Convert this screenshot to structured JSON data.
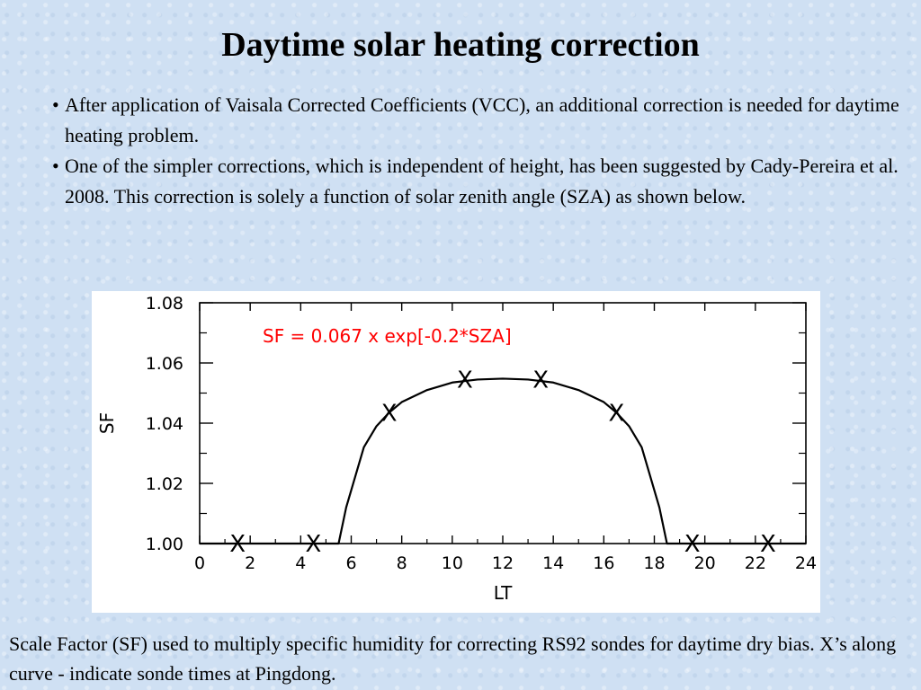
{
  "slide": {
    "title": "Daytime solar heating correction",
    "bullets": [
      "After application of  Vaisala Corrected Coefficients (VCC), an additional correction is needed for daytime heating problem.",
      "One of the simpler corrections, which is independent of height, has been suggested by Cady-Pereira et al. 2008. This correction is solely a function of solar zenith angle (SZA) as shown below."
    ],
    "bullet_symbol": "•",
    "caption": "Scale Factor (SF) used to multiply specific humidity for correcting RS92 sondes for daytime dry bias. X’s along curve - indicate sonde times at Pingdong."
  },
  "chart_data": {
    "type": "line",
    "xlabel": "LT",
    "ylabel": "SF",
    "xlim": [
      0,
      24
    ],
    "ylim": [
      1.0,
      1.08
    ],
    "xticks": [
      "0",
      "2",
      "4",
      "6",
      "8",
      "10",
      "12",
      "14",
      "16",
      "18",
      "20",
      "22",
      "24"
    ],
    "yticks": [
      "1.00",
      "1.02",
      "1.04",
      "1.06",
      "1.08"
    ],
    "annotation": "SF = 0.067 x exp[-0.2*SZA]",
    "annotation_color": "#ff0000",
    "grid": false,
    "series": [
      {
        "x": [
          0,
          5.5,
          5.8,
          6.5,
          7.0,
          7.5,
          8.0,
          9.0,
          10.0,
          11.0,
          12.0,
          13.0,
          14.0,
          15.0,
          16.0,
          16.5,
          17.0,
          17.5,
          18.2,
          18.5,
          24
        ],
        "values": [
          1.0,
          1.0,
          1.012,
          1.032,
          1.039,
          1.0435,
          1.047,
          1.051,
          1.0535,
          1.0545,
          1.0548,
          1.0545,
          1.0535,
          1.051,
          1.047,
          1.0435,
          1.039,
          1.032,
          1.012,
          1.0,
          1.0
        ]
      }
    ],
    "markers": {
      "symbol": "X",
      "x": [
        1.5,
        4.5,
        7.5,
        10.5,
        13.5,
        16.5,
        19.5,
        22.5
      ],
      "values": [
        1.0,
        1.0,
        1.0435,
        1.0545,
        1.0545,
        1.0435,
        1.0,
        1.0
      ]
    }
  }
}
